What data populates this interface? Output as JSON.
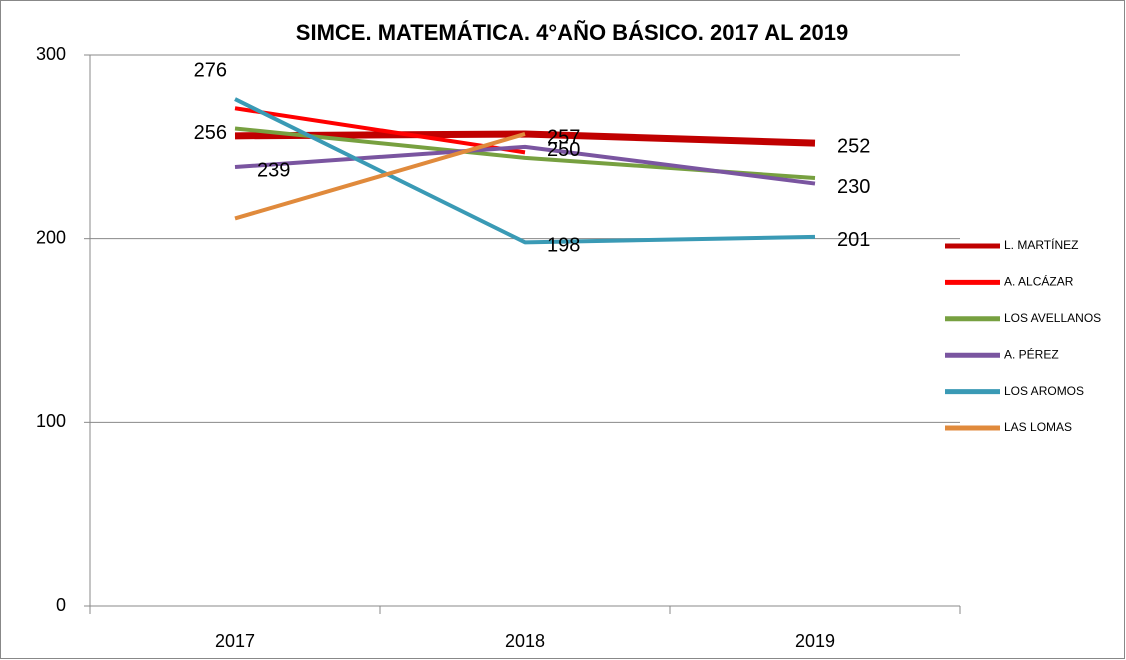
{
  "chart_data": {
    "type": "line",
    "title": "SIMCE. MATEMÁTICA. 4°AÑO BÁSICO.  2017 AL 2019",
    "categories": [
      "2017",
      "2018",
      "2019"
    ],
    "series": [
      {
        "name": "L. MARTÍNEZ",
        "color": "#c00000",
        "values": [
          256,
          257,
          252
        ],
        "labels": true
      },
      {
        "name": "A. ALCÁZAR",
        "color": "#ff0000",
        "values": [
          271,
          247,
          null
        ],
        "labels": false
      },
      {
        "name": "LOS AVELLANOS",
        "color": "#77a040",
        "values": [
          260,
          244,
          233
        ],
        "labels": false
      },
      {
        "name": "A. PÉREZ",
        "color": "#7a55a0",
        "values": [
          239,
          250,
          230
        ],
        "labels": true
      },
      {
        "name": "LOS AROMOS",
        "color": "#3a9ab5",
        "values": [
          276,
          198,
          201
        ],
        "labels": true
      },
      {
        "name": "LAS LOMAS",
        "color": "#e08a3c",
        "values": [
          211,
          257,
          null
        ],
        "labels": false
      }
    ],
    "ylim": [
      0,
      300
    ],
    "yticks": [
      0,
      100,
      200,
      300
    ],
    "grid": true,
    "legend": "right"
  }
}
